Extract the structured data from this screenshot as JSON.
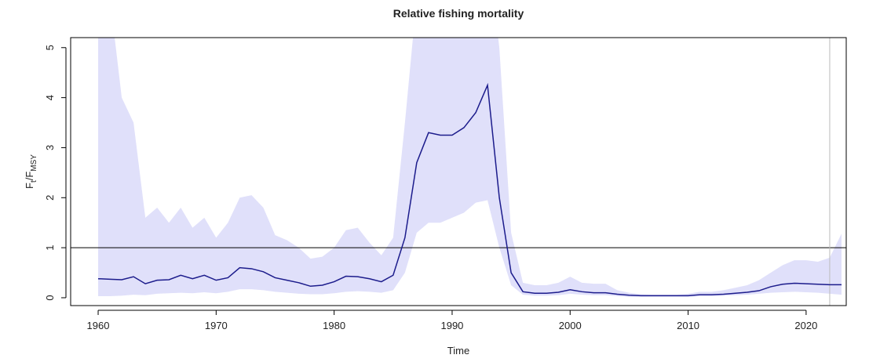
{
  "chart_data": {
    "type": "line",
    "title": "Relative fishing mortality",
    "xlabel": "Time",
    "ylabel": [
      "F",
      "t",
      "/F",
      "MSY"
    ],
    "x": [
      1960,
      1961,
      1962,
      1963,
      1964,
      1965,
      1966,
      1967,
      1968,
      1969,
      1970,
      1971,
      1972,
      1973,
      1974,
      1975,
      1976,
      1977,
      1978,
      1979,
      1980,
      1981,
      1982,
      1983,
      1984,
      1985,
      1986,
      1987,
      1988,
      1989,
      1990,
      1991,
      1992,
      1993,
      1994,
      1995,
      1996,
      1997,
      1998,
      1999,
      2000,
      2001,
      2002,
      2003,
      2004,
      2005,
      2006,
      2007,
      2008,
      2009,
      2010,
      2011,
      2012,
      2013,
      2014,
      2015,
      2016,
      2017,
      2018,
      2019,
      2020,
      2021,
      2022,
      2023
    ],
    "series": [
      {
        "color": "#1c1c8c",
        "values": [
          0.38,
          0.37,
          0.36,
          0.42,
          0.28,
          0.35,
          0.36,
          0.45,
          0.38,
          0.45,
          0.35,
          0.4,
          0.6,
          0.58,
          0.52,
          0.4,
          0.35,
          0.3,
          0.23,
          0.25,
          0.32,
          0.43,
          0.42,
          0.38,
          0.32,
          0.45,
          1.2,
          2.7,
          3.3,
          3.25,
          3.25,
          3.4,
          3.7,
          4.25,
          2.0,
          0.5,
          0.12,
          0.09,
          0.09,
          0.11,
          0.16,
          0.12,
          0.1,
          0.1,
          0.07,
          0.05,
          0.04,
          0.04,
          0.04,
          0.04,
          0.04,
          0.06,
          0.06,
          0.07,
          0.09,
          0.11,
          0.14,
          0.22,
          0.27,
          0.29,
          0.28,
          0.27,
          0.26,
          0.26
        ]
      }
    ],
    "band": {
      "color": "#e0e0fa",
      "lower": [
        0.03,
        0.03,
        0.04,
        0.06,
        0.05,
        0.08,
        0.09,
        0.1,
        0.09,
        0.11,
        0.09,
        0.12,
        0.17,
        0.17,
        0.15,
        0.12,
        0.1,
        0.08,
        0.07,
        0.07,
        0.09,
        0.12,
        0.13,
        0.12,
        0.1,
        0.15,
        0.5,
        1.3,
        1.5,
        1.5,
        1.6,
        1.7,
        1.9,
        1.95,
        1.0,
        0.25,
        0.06,
        0.04,
        0.04,
        0.05,
        0.08,
        0.06,
        0.05,
        0.05,
        0.03,
        0.02,
        0.02,
        0.02,
        0.02,
        0.02,
        0.02,
        0.03,
        0.03,
        0.04,
        0.05,
        0.06,
        0.08,
        0.1,
        0.11,
        0.12,
        0.11,
        0.1,
        0.08,
        0.06
      ],
      "upper": [
        7,
        6,
        4.0,
        3.5,
        1.6,
        1.8,
        1.5,
        1.8,
        1.4,
        1.6,
        1.2,
        1.5,
        2.0,
        2.05,
        1.8,
        1.25,
        1.15,
        1.0,
        0.78,
        0.82,
        1.0,
        1.35,
        1.4,
        1.1,
        0.85,
        1.2,
        3.5,
        6,
        7,
        7,
        7,
        7,
        7,
        7,
        5,
        1.3,
        0.3,
        0.25,
        0.25,
        0.3,
        0.42,
        0.3,
        0.28,
        0.28,
        0.15,
        0.1,
        0.07,
        0.06,
        0.06,
        0.06,
        0.08,
        0.12,
        0.12,
        0.15,
        0.2,
        0.25,
        0.35,
        0.5,
        0.65,
        0.75,
        0.75,
        0.72,
        0.8,
        1.28
      ]
    },
    "hlines": [
      1
    ],
    "hline_color": "#000000",
    "vlines": [
      2022
    ],
    "vline_color": "#bbbbbb",
    "xlim": [
      1957.67,
      2023.4
    ],
    "ylim": [
      -0.157,
      5.2
    ],
    "xticks": [
      1960,
      1970,
      1980,
      1990,
      2000,
      2010,
      2020
    ],
    "yticks": [
      0,
      1,
      2,
      3,
      4,
      5
    ]
  }
}
